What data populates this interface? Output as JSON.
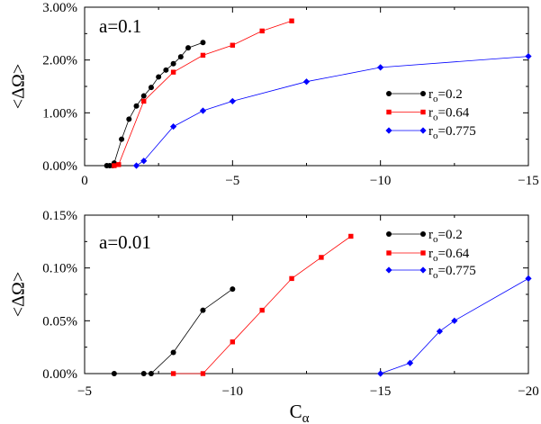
{
  "chart_data": [
    {
      "type": "line",
      "annotation": "a=0.1",
      "ylabel": "<ΔΩ>",
      "xlabel": "",
      "xlim": [
        0,
        -15
      ],
      "ylim": [
        0,
        0.03
      ],
      "x_ticks": [
        0,
        -5,
        -10,
        -15
      ],
      "x_tick_labels": [
        "0",
        "−5",
        "−10",
        "−15"
      ],
      "y_ticks": [
        0,
        0.01,
        0.02,
        0.03
      ],
      "y_tick_labels": [
        "0.00%",
        "1.00%",
        "2.00%",
        "3.00%"
      ],
      "legend_position": "center-right",
      "series": [
        {
          "name_main": "r",
          "name_sub": "o",
          "name_tail": "=0.2",
          "color": "#000000",
          "marker": "circle",
          "x": [
            -0.75,
            -0.85,
            -0.95,
            -1.0,
            -1.25,
            -1.5,
            -1.75,
            -2.0,
            -2.25,
            -2.5,
            -2.75,
            -3.0,
            -3.25,
            -3.5,
            -4.0
          ],
          "y": [
            0.0,
            0.0,
            0.0,
            0.0005,
            0.005,
            0.0088,
            0.0113,
            0.0132,
            0.0148,
            0.0168,
            0.0181,
            0.0193,
            0.0206,
            0.0223,
            0.0233
          ]
        },
        {
          "name_main": "r",
          "name_sub": "o",
          "name_tail": "=0.64",
          "color": "#ff0000",
          "marker": "square",
          "x": [
            -1.0,
            -1.15,
            -2.0,
            -3.0,
            -4.0,
            -5.0,
            -6.0,
            -7.0
          ],
          "y": [
            0.0,
            0.0002,
            0.0122,
            0.0177,
            0.0209,
            0.0228,
            0.0255,
            0.0274
          ]
        },
        {
          "name_main": "r",
          "name_sub": "o",
          "name_tail": "=0.775",
          "color": "#0000ff",
          "marker": "diamond",
          "x": [
            -1.75,
            -2.0,
            -3.0,
            -4.0,
            -5.0,
            -7.5,
            -10.0,
            -15.0
          ],
          "y": [
            0.0,
            0.0009,
            0.0074,
            0.0104,
            0.0122,
            0.0159,
            0.0186,
            0.0207
          ]
        }
      ]
    },
    {
      "type": "line",
      "annotation": "a=0.01",
      "ylabel": "<ΔΩ>",
      "xlabel_main": "C",
      "xlabel_sub": "α",
      "xlim": [
        -5,
        -20
      ],
      "ylim": [
        0,
        0.0015
      ],
      "x_ticks": [
        -5,
        -10,
        -15,
        -20
      ],
      "x_tick_labels": [
        "−5",
        "−10",
        "−15",
        "−20"
      ],
      "y_ticks": [
        0,
        0.0005,
        0.001,
        0.0015
      ],
      "y_tick_labels": [
        "0.00%",
        "0.05%",
        "0.10%",
        "0.15%"
      ],
      "legend_position": "top-right",
      "series": [
        {
          "name_main": "r",
          "name_sub": "o",
          "name_tail": "=0.2",
          "color": "#000000",
          "marker": "circle",
          "x": [
            -6.0,
            -7.0,
            -7.25,
            -8.0,
            -9.0,
            -10.0
          ],
          "y": [
            0.0,
            0.0,
            0.0,
            0.0002,
            0.0006,
            0.0008
          ]
        },
        {
          "name_main": "r",
          "name_sub": "o",
          "name_tail": "=0.64",
          "color": "#ff0000",
          "marker": "square",
          "x": [
            -8.0,
            -9.0,
            -10.0,
            -11.0,
            -12.0,
            -13.0,
            -14.0
          ],
          "y": [
            0.0,
            0.0,
            0.0003,
            0.0006,
            0.0009,
            0.0011,
            0.0013
          ]
        },
        {
          "name_main": "r",
          "name_sub": "o",
          "name_tail": "=0.775",
          "color": "#0000ff",
          "marker": "diamond",
          "x": [
            -15.0,
            -16.0,
            -17.0,
            -17.5,
            -20.0
          ],
          "y": [
            0.0,
            0.0001,
            0.0004,
            0.0005,
            0.0009
          ]
        }
      ]
    }
  ]
}
